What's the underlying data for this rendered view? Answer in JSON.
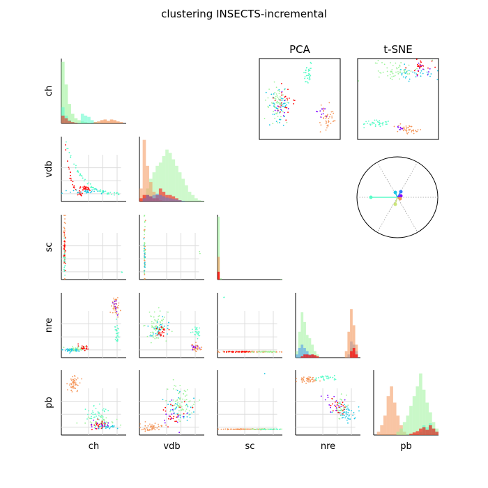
{
  "title": "clustering INSECTS-incremental",
  "embedding_titles": {
    "pca": "PCA",
    "tsne": "t-SNE"
  },
  "variables": [
    "ch",
    "vdb",
    "sc",
    "nre",
    "pb"
  ],
  "colors": {
    "purple": "#7f00ff",
    "blue": "#2c7ef7",
    "cyan": "#1ac7e3",
    "aqua": "#5afcc8",
    "lightgreen": "#9df39a",
    "yellowgreen": "#cbe57a",
    "orange": "#f4965a",
    "red": "#ff0000"
  },
  "chart_data": {
    "type": "scatter",
    "layout": "scatter matrix with histograms on diagonal, PCA and t-SNE embeddings, and a circular correlation plot",
    "variables": [
      "ch",
      "vdb",
      "sc",
      "nre",
      "pb"
    ],
    "grid": true
  }
}
